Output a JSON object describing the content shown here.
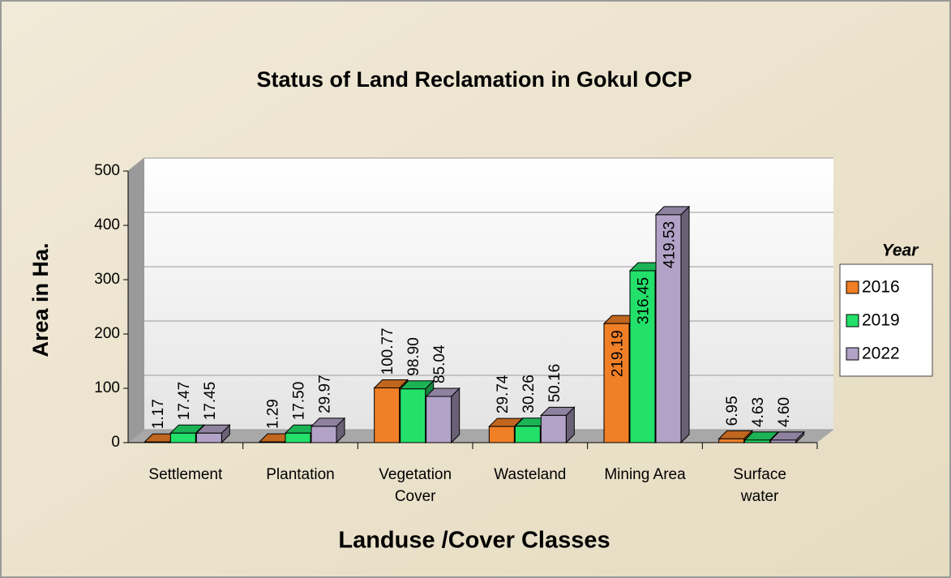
{
  "chart_data": {
    "type": "bar",
    "title": "Status of Land Reclamation in Gokul OCP",
    "x_label": "Landuse /Cover Classes",
    "y_label": "Area in Ha.",
    "legend_title": "Year",
    "legend_position": "right",
    "grid": true,
    "categories": [
      "Settlement",
      "Plantation",
      "Vegetation Cover",
      "Wasteland",
      "Mining Area",
      "Surface water"
    ],
    "series": [
      {
        "name": "2016",
        "color": "#f07f26",
        "values": [
          1.17,
          1.29,
          100.77,
          29.74,
          219.19,
          6.95
        ],
        "value_labels": [
          "1.17",
          "1.29",
          "100.77",
          "29.74",
          "219.19",
          "6.95"
        ]
      },
      {
        "name": "2019",
        "color": "#22e06a",
        "values": [
          17.47,
          17.5,
          98.9,
          30.26,
          316.45,
          4.63
        ],
        "value_labels": [
          "17.47",
          "17.50",
          "98.90",
          "30.26",
          "316.45",
          "4.63"
        ]
      },
      {
        "name": "2022",
        "color": "#b2a2c7",
        "values": [
          17.45,
          29.97,
          85.04,
          50.16,
          419.53,
          4.6
        ],
        "value_labels": [
          "17.45",
          "29.97",
          "85.04",
          "50.16",
          "419.53",
          "4.60"
        ]
      }
    ],
    "ylim": [
      0,
      500
    ],
    "yticks": [
      0,
      100,
      200,
      300,
      400,
      500
    ]
  }
}
